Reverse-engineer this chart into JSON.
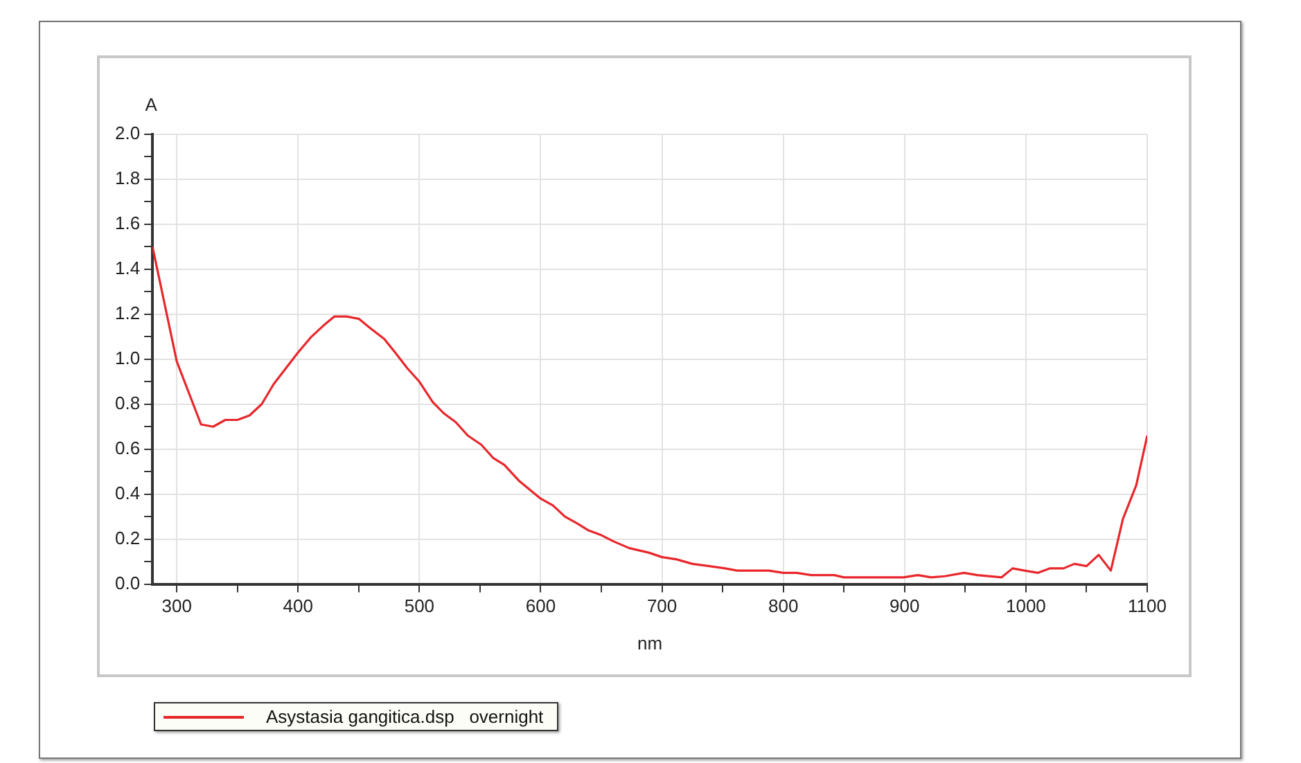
{
  "chart_data": {
    "type": "line",
    "xlabel": "nm",
    "ylabel": "A",
    "xlim": [
      280,
      1100
    ],
    "xticks": [
      300,
      {
        "value": 350,
        "label": null
      },
      400,
      {
        "value": 450,
        "label": null
      },
      500,
      {
        "value": 550,
        "label": null
      },
      600,
      {
        "value": 650,
        "label": null
      },
      700,
      {
        "value": 750,
        "label": null
      },
      800,
      {
        "value": 850,
        "label": null
      },
      900,
      {
        "value": 950,
        "label": null
      },
      1000,
      {
        "value": 1050,
        "label": null
      },
      1100
    ],
    "ylim": [
      0,
      2
    ],
    "yticks": [
      {
        "value": 0,
        "label": "0.0"
      },
      {
        "value": 0.1,
        "label": null
      },
      0.2,
      {
        "value": 0.3,
        "label": null
      },
      0.4,
      {
        "value": 0.5,
        "label": null
      },
      0.6,
      {
        "value": 0.7,
        "label": null
      },
      0.8,
      {
        "value": 0.9,
        "label": null
      },
      {
        "value": 1,
        "label": "1.0"
      },
      {
        "value": 1.1,
        "label": null
      },
      1.2,
      {
        "value": 1.3,
        "label": null
      },
      1.4,
      {
        "value": 1.5,
        "label": null
      },
      1.6,
      {
        "value": 1.7,
        "label": null
      },
      1.8,
      {
        "value": 1.9,
        "label": null
      },
      {
        "value": 2,
        "label": "2.0"
      }
    ],
    "grid": true,
    "legend": "bottom left",
    "marker": "none",
    "line_style": "solid",
    "series": [
      {
        "name": "Asystasia gangitica.dsp   overnight",
        "color": "#e8262b",
        "x": [
          280,
          300,
          320,
          330,
          340,
          350,
          360,
          370,
          380,
          390,
          400,
          411,
          421,
          430,
          440,
          450,
          459,
          471,
          480,
          490,
          500,
          511,
          520,
          530,
          540,
          551,
          561,
          570,
          582,
          591,
          600,
          610,
          620,
          630,
          639,
          649,
          660,
          673,
          689,
          700,
          712,
          725,
          739,
          752,
          762,
          777,
          788,
          800,
          811,
          823,
          842,
          850,
          899,
          911,
          922,
          933,
          949,
          960,
          980,
          989,
          999,
          1010,
          1020,
          1031,
          1040,
          1050,
          1060,
          1070,
          1080,
          1091,
          1100
        ],
        "values": [
          1.5,
          0.99,
          0.71,
          0.7,
          0.73,
          0.73,
          0.75,
          0.8,
          0.89,
          0.96,
          1.03,
          1.1,
          1.15,
          1.19,
          1.19,
          1.18,
          1.14,
          1.09,
          1.03,
          0.96,
          0.9,
          0.81,
          0.76,
          0.72,
          0.66,
          0.62,
          0.56,
          0.53,
          0.46,
          0.42,
          0.38,
          0.35,
          0.3,
          0.27,
          0.24,
          0.22,
          0.19,
          0.16,
          0.14,
          0.12,
          0.11,
          0.09,
          0.08,
          0.07,
          0.06,
          0.06,
          0.06,
          0.05,
          0.05,
          0.04,
          0.04,
          0.03,
          0.03,
          0.04,
          0.03,
          0.035,
          0.05,
          0.04,
          0.03,
          0.07,
          0.06,
          0.05,
          0.07,
          0.07,
          0.09,
          0.08,
          0.13,
          0.06,
          0.29,
          0.44,
          0.66
        ]
      }
    ]
  }
}
